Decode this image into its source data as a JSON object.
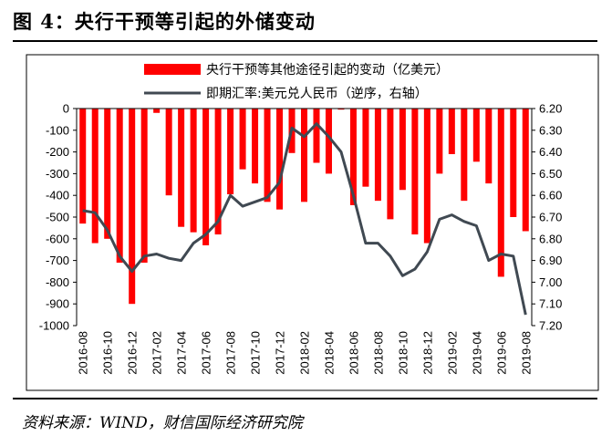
{
  "title": "图 4：央行干预等引起的外储变动",
  "source": "资料来源：WIND，财信国际经济研究院",
  "chart_data": {
    "type": "bar",
    "categories": [
      "2016-08",
      "2016-09",
      "2016-10",
      "2016-11",
      "2016-12",
      "2017-01",
      "2017-02",
      "2017-03",
      "2017-04",
      "2017-05",
      "2017-06",
      "2017-07",
      "2017-08",
      "2017-09",
      "2017-10",
      "2017-11",
      "2017-12",
      "2018-01",
      "2018-02",
      "2018-03",
      "2018-04",
      "2018-05",
      "2018-06",
      "2018-07",
      "2018-08",
      "2018-09",
      "2018-10",
      "2018-11",
      "2018-12",
      "2019-01",
      "2019-02",
      "2019-03",
      "2019-04",
      "2019-05",
      "2019-06",
      "2019-07",
      "2019-08"
    ],
    "x_tick_labels": [
      "2016-08",
      "2016-10",
      "2016-12",
      "2017-02",
      "2017-04",
      "2017-06",
      "2017-08",
      "2017-10",
      "2017-12",
      "2018-02",
      "2018-04",
      "2018-06",
      "2018-08",
      "2018-10",
      "2018-12",
      "2019-02",
      "2019-04",
      "2019-06",
      "2019-08"
    ],
    "series": [
      {
        "name": "央行干预等其他途径引起的变动（亿美元）",
        "type": "bar",
        "axis": "left",
        "color": "#ff0000",
        "values": [
          -530,
          -620,
          -600,
          -710,
          -900,
          -710,
          -20,
          -400,
          -545,
          -570,
          -630,
          -580,
          -395,
          -280,
          -345,
          -430,
          -465,
          -205,
          -430,
          -250,
          -300,
          -5,
          -445,
          -360,
          -425,
          -510,
          -375,
          -580,
          -620,
          -300,
          -210,
          -425,
          -245,
          -345,
          -775,
          -500,
          -565
        ]
      },
      {
        "name": "即期汇率:美元兑人民币（逆序，右轴）",
        "type": "line",
        "axis": "right",
        "color": "#404952",
        "values": [
          6.67,
          6.68,
          6.76,
          6.88,
          6.95,
          6.88,
          6.87,
          6.89,
          6.9,
          6.82,
          6.78,
          6.72,
          6.6,
          6.65,
          6.63,
          6.61,
          6.54,
          6.29,
          6.33,
          6.27,
          6.33,
          6.4,
          6.6,
          6.82,
          6.82,
          6.88,
          6.97,
          6.94,
          6.86,
          6.71,
          6.69,
          6.72,
          6.74,
          6.9,
          6.87,
          6.88,
          7.15
        ]
      }
    ],
    "y_left": {
      "min": -1000,
      "max": 0,
      "ticks": [
        "0",
        "-100",
        "-200",
        "-300",
        "-400",
        "-500",
        "-600",
        "-700",
        "-800",
        "-900",
        "-1000"
      ]
    },
    "y_right": {
      "min": 6.2,
      "max": 7.2,
      "inverted": true,
      "ticks": [
        "6.20",
        "6.30",
        "6.40",
        "6.50",
        "6.60",
        "6.70",
        "6.80",
        "6.90",
        "7.00",
        "7.10",
        "7.20"
      ]
    },
    "grid": false,
    "legend_position": "top-center"
  }
}
